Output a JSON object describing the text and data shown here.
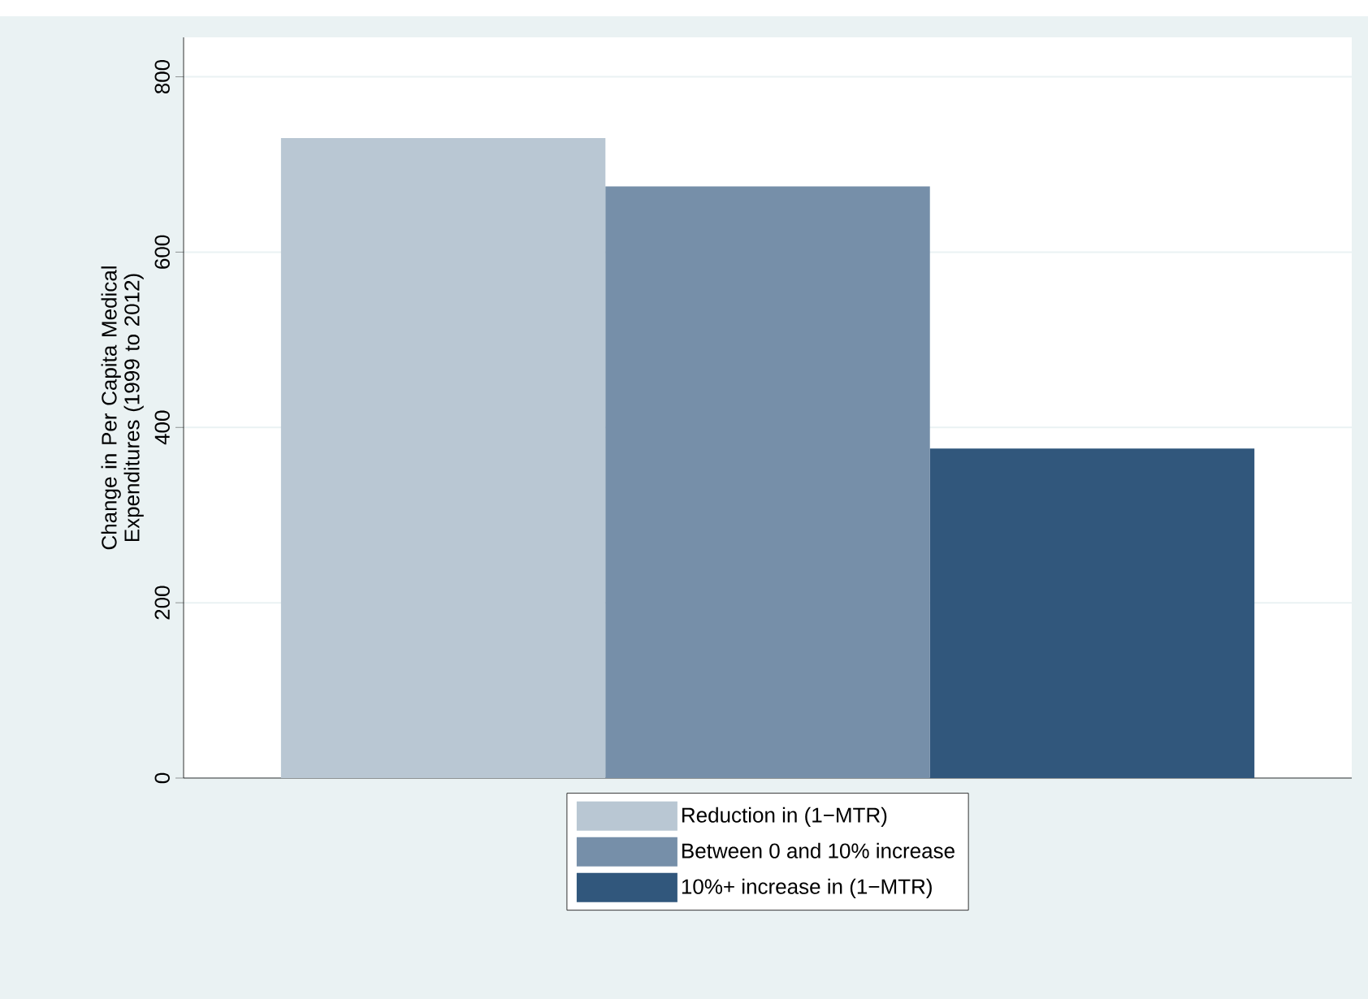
{
  "chart_data": {
    "type": "bar",
    "ylabel": "Change in Per Capita Medical Expenditures (1999 to 2012)",
    "categories": [
      null
    ],
    "series": [
      {
        "name": "Reduction in (1−MTR)",
        "color": "#b9c7d3",
        "values": [
          730
        ]
      },
      {
        "name": "Between 0 and 10% increase",
        "color": "#768fa9",
        "values": [
          675
        ]
      },
      {
        "name": "10%+ increase in (1−MTR)",
        "color": "#31577c",
        "values": [
          376
        ]
      }
    ],
    "ylim": [
      0,
      845
    ],
    "yticks": [
      0,
      200,
      400,
      600,
      800
    ],
    "grid": "y",
    "legend": "bottom"
  }
}
